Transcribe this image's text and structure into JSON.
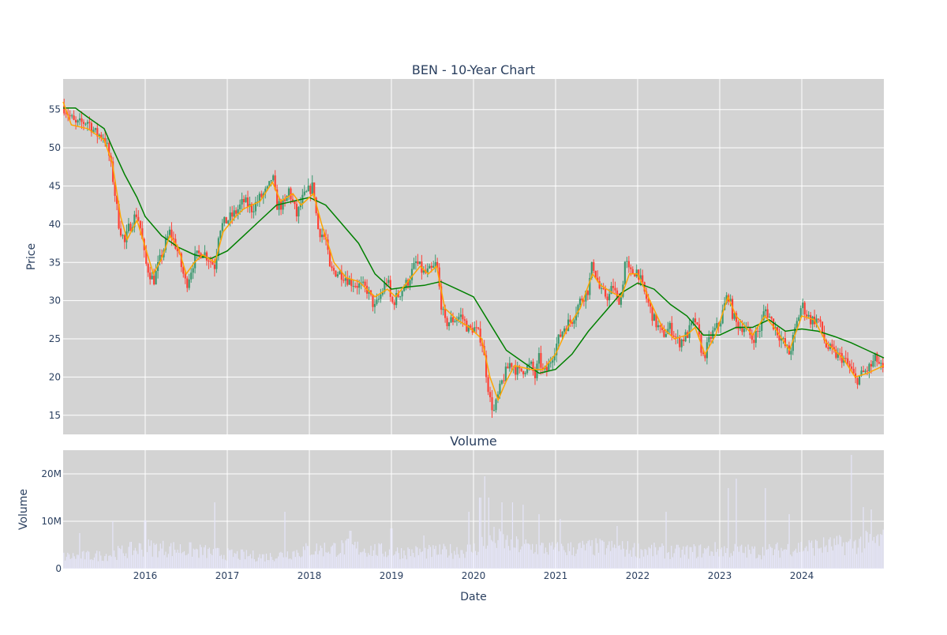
{
  "chart_data": [
    {
      "type": "candlestick",
      "title": "BEN - 10-Year Chart",
      "ylabel": "Price",
      "ylim": [
        12.5,
        59.0
      ],
      "yticks": [
        15,
        20,
        25,
        30,
        35,
        40,
        45,
        50,
        55
      ],
      "xlim": [
        2015.0,
        2025.0
      ],
      "xticks": [
        "2016",
        "2017",
        "2018",
        "2019",
        "2020",
        "2021",
        "2022",
        "2023",
        "2024"
      ],
      "grid": true,
      "legend": "none",
      "colors": {
        "increasing": "#3D9970",
        "decreasing": "#FF4136",
        "ma_short": "#FFA500",
        "ma_long": "#008000",
        "plot_bg": "#D3D3D3"
      },
      "price_path": [
        [
          2015.0,
          55.5
        ],
        [
          2015.15,
          53.0
        ],
        [
          2015.3,
          53.5
        ],
        [
          2015.4,
          51.8
        ],
        [
          2015.5,
          51.5
        ],
        [
          2015.55,
          49.5
        ],
        [
          2015.6,
          46.5
        ],
        [
          2015.68,
          40.0
        ],
        [
          2015.75,
          37.5
        ],
        [
          2015.8,
          39.5
        ],
        [
          2015.9,
          41.5
        ],
        [
          2015.95,
          39.0
        ],
        [
          2016.0,
          35.0
        ],
        [
          2016.1,
          32.5
        ],
        [
          2016.2,
          36.0
        ],
        [
          2016.3,
          39.0
        ],
        [
          2016.38,
          37.0
        ],
        [
          2016.5,
          32.0
        ],
        [
          2016.6,
          35.5
        ],
        [
          2016.7,
          36.5
        ],
        [
          2016.85,
          34.5
        ],
        [
          2016.9,
          39.5
        ],
        [
          2017.0,
          40.5
        ],
        [
          2017.1,
          41.5
        ],
        [
          2017.2,
          43.0
        ],
        [
          2017.3,
          42.0
        ],
        [
          2017.4,
          43.5
        ],
        [
          2017.5,
          44.5
        ],
        [
          2017.55,
          46.5
        ],
        [
          2017.6,
          42.5
        ],
        [
          2017.7,
          42.5
        ],
        [
          2017.75,
          44.5
        ],
        [
          2017.85,
          41.0
        ],
        [
          2017.9,
          43.0
        ],
        [
          2018.0,
          44.5
        ],
        [
          2018.05,
          45.0
        ],
        [
          2018.1,
          39.5
        ],
        [
          2018.2,
          38.0
        ],
        [
          2018.25,
          34.0
        ],
        [
          2018.4,
          33.5
        ],
        [
          2018.5,
          32.5
        ],
        [
          2018.6,
          32.0
        ],
        [
          2018.7,
          31.5
        ],
        [
          2018.8,
          29.0
        ],
        [
          2018.9,
          31.5
        ],
        [
          2018.95,
          33.0
        ],
        [
          2019.0,
          29.5
        ],
        [
          2019.1,
          31.0
        ],
        [
          2019.2,
          32.5
        ],
        [
          2019.3,
          35.0
        ],
        [
          2019.4,
          33.5
        ],
        [
          2019.5,
          34.0
        ],
        [
          2019.55,
          35.0
        ],
        [
          2019.6,
          30.0
        ],
        [
          2019.65,
          27.0
        ],
        [
          2019.75,
          27.5
        ],
        [
          2019.85,
          28.0
        ],
        [
          2019.95,
          26.0
        ],
        [
          2020.0,
          26.5
        ],
        [
          2020.1,
          25.0
        ],
        [
          2020.15,
          21.0
        ],
        [
          2020.2,
          17.0
        ],
        [
          2020.25,
          15.5
        ],
        [
          2020.35,
          19.5
        ],
        [
          2020.45,
          22.0
        ],
        [
          2020.55,
          20.5
        ],
        [
          2020.6,
          21.0
        ],
        [
          2020.7,
          21.5
        ],
        [
          2020.75,
          20.0
        ],
        [
          2020.8,
          22.5
        ],
        [
          2020.85,
          20.5
        ],
        [
          2020.9,
          21.0
        ],
        [
          2021.0,
          24.0
        ],
        [
          2021.1,
          26.5
        ],
        [
          2021.2,
          27.5
        ],
        [
          2021.3,
          30.0
        ],
        [
          2021.4,
          31.5
        ],
        [
          2021.45,
          35.0
        ],
        [
          2021.55,
          31.0
        ],
        [
          2021.65,
          30.5
        ],
        [
          2021.7,
          32.0
        ],
        [
          2021.75,
          30.0
        ],
        [
          2021.8,
          30.5
        ],
        [
          2021.85,
          35.5
        ],
        [
          2021.9,
          33.5
        ],
        [
          2022.0,
          34.0
        ],
        [
          2022.05,
          32.0
        ],
        [
          2022.1,
          30.5
        ],
        [
          2022.2,
          27.5
        ],
        [
          2022.3,
          25.5
        ],
        [
          2022.4,
          26.5
        ],
        [
          2022.5,
          24.5
        ],
        [
          2022.6,
          25.5
        ],
        [
          2022.7,
          27.5
        ],
        [
          2022.8,
          22.5
        ],
        [
          2022.9,
          25.5
        ],
        [
          2023.0,
          27.0
        ],
        [
          2023.1,
          31.0
        ],
        [
          2023.15,
          28.5
        ],
        [
          2023.2,
          27.0
        ],
        [
          2023.3,
          26.5
        ],
        [
          2023.4,
          25.0
        ],
        [
          2023.5,
          26.5
        ],
        [
          2023.55,
          29.0
        ],
        [
          2023.65,
          27.0
        ],
        [
          2023.75,
          25.0
        ],
        [
          2023.85,
          23.0
        ],
        [
          2023.95,
          27.5
        ],
        [
          2024.0,
          29.5
        ],
        [
          2024.1,
          27.5
        ],
        [
          2024.2,
          27.5
        ],
        [
          2024.3,
          24.0
        ],
        [
          2024.4,
          23.0
        ],
        [
          2024.5,
          22.5
        ],
        [
          2024.6,
          21.0
        ],
        [
          2024.65,
          19.5
        ],
        [
          2024.75,
          20.5
        ],
        [
          2024.85,
          21.5
        ],
        [
          2024.9,
          22.5
        ],
        [
          2025.0,
          20.5
        ]
      ],
      "ma_short": [
        [
          2015.0,
          56.0
        ],
        [
          2015.1,
          53.0
        ],
        [
          2015.3,
          52.5
        ],
        [
          2015.5,
          51.0
        ],
        [
          2015.6,
          48.0
        ],
        [
          2015.7,
          41.0
        ],
        [
          2015.78,
          38.0
        ],
        [
          2015.9,
          40.5
        ],
        [
          2016.0,
          37.0
        ],
        [
          2016.1,
          33.5
        ],
        [
          2016.2,
          35.5
        ],
        [
          2016.3,
          38.5
        ],
        [
          2016.4,
          37.0
        ],
        [
          2016.5,
          33.5
        ],
        [
          2016.6,
          35.0
        ],
        [
          2016.7,
          36.0
        ],
        [
          2016.85,
          35.0
        ],
        [
          2016.95,
          39.0
        ],
        [
          2017.1,
          41.0
        ],
        [
          2017.2,
          42.0
        ],
        [
          2017.4,
          43.0
        ],
        [
          2017.55,
          45.5
        ],
        [
          2017.65,
          43.0
        ],
        [
          2017.8,
          44.0
        ],
        [
          2017.9,
          42.5
        ],
        [
          2018.05,
          44.0
        ],
        [
          2018.15,
          40.0
        ],
        [
          2018.3,
          35.0
        ],
        [
          2018.45,
          33.0
        ],
        [
          2018.6,
          32.5
        ],
        [
          2018.8,
          30.5
        ],
        [
          2018.95,
          31.5
        ],
        [
          2019.05,
          30.5
        ],
        [
          2019.2,
          32.5
        ],
        [
          2019.35,
          34.5
        ],
        [
          2019.45,
          33.5
        ],
        [
          2019.55,
          34.5
        ],
        [
          2019.65,
          29.0
        ],
        [
          2019.8,
          27.5
        ],
        [
          2019.95,
          26.5
        ],
        [
          2020.1,
          25.0
        ],
        [
          2020.2,
          20.0
        ],
        [
          2020.3,
          17.0
        ],
        [
          2020.4,
          19.5
        ],
        [
          2020.5,
          21.5
        ],
        [
          2020.7,
          21.0
        ],
        [
          2020.85,
          21.0
        ],
        [
          2021.0,
          23.0
        ],
        [
          2021.15,
          26.5
        ],
        [
          2021.3,
          29.0
        ],
        [
          2021.45,
          33.5
        ],
        [
          2021.55,
          32.0
        ],
        [
          2021.7,
          31.0
        ],
        [
          2021.8,
          30.5
        ],
        [
          2021.9,
          33.5
        ],
        [
          2022.0,
          33.5
        ],
        [
          2022.15,
          30.0
        ],
        [
          2022.3,
          26.5
        ],
        [
          2022.45,
          25.0
        ],
        [
          2022.6,
          25.5
        ],
        [
          2022.7,
          26.5
        ],
        [
          2022.82,
          23.0
        ],
        [
          2022.95,
          25.5
        ],
        [
          2023.1,
          30.5
        ],
        [
          2023.2,
          28.0
        ],
        [
          2023.4,
          25.5
        ],
        [
          2023.55,
          28.0
        ],
        [
          2023.7,
          26.0
        ],
        [
          2023.85,
          23.5
        ],
        [
          2024.0,
          28.0
        ],
        [
          2024.15,
          27.5
        ],
        [
          2024.3,
          24.5
        ],
        [
          2024.5,
          22.5
        ],
        [
          2024.65,
          20.0
        ],
        [
          2024.8,
          20.5
        ],
        [
          2025.0,
          21.5
        ]
      ],
      "ma_long": [
        [
          2015.0,
          55.2
        ],
        [
          2015.15,
          55.2
        ],
        [
          2015.3,
          54.0
        ],
        [
          2015.5,
          52.5
        ],
        [
          2015.6,
          50.0
        ],
        [
          2015.75,
          46.5
        ],
        [
          2015.9,
          43.5
        ],
        [
          2016.0,
          41.0
        ],
        [
          2016.2,
          38.5
        ],
        [
          2016.4,
          37.0
        ],
        [
          2016.6,
          36.0
        ],
        [
          2016.8,
          35.5
        ],
        [
          2017.0,
          36.5
        ],
        [
          2017.2,
          38.5
        ],
        [
          2017.4,
          40.5
        ],
        [
          2017.6,
          42.5
        ],
        [
          2017.8,
          43.0
        ],
        [
          2018.0,
          43.5
        ],
        [
          2018.2,
          42.5
        ],
        [
          2018.4,
          40.0
        ],
        [
          2018.6,
          37.5
        ],
        [
          2018.8,
          33.5
        ],
        [
          2019.0,
          31.5
        ],
        [
          2019.2,
          31.8
        ],
        [
          2019.4,
          32.0
        ],
        [
          2019.6,
          32.5
        ],
        [
          2019.8,
          31.5
        ],
        [
          2020.0,
          30.5
        ],
        [
          2020.2,
          27.0
        ],
        [
          2020.4,
          23.5
        ],
        [
          2020.6,
          22.0
        ],
        [
          2020.8,
          20.5
        ],
        [
          2021.0,
          21.0
        ],
        [
          2021.2,
          23.0
        ],
        [
          2021.4,
          26.0
        ],
        [
          2021.6,
          28.5
        ],
        [
          2021.8,
          31.0
        ],
        [
          2022.0,
          32.3
        ],
        [
          2022.2,
          31.5
        ],
        [
          2022.4,
          29.5
        ],
        [
          2022.6,
          28.0
        ],
        [
          2022.8,
          25.5
        ],
        [
          2023.0,
          25.5
        ],
        [
          2023.2,
          26.5
        ],
        [
          2023.4,
          26.5
        ],
        [
          2023.6,
          27.5
        ],
        [
          2023.8,
          26.0
        ],
        [
          2024.0,
          26.3
        ],
        [
          2024.2,
          26.0
        ],
        [
          2024.4,
          25.3
        ],
        [
          2024.6,
          24.5
        ],
        [
          2024.8,
          23.5
        ],
        [
          2025.0,
          22.5
        ]
      ]
    },
    {
      "type": "bar",
      "title": "Volume",
      "ylabel": "Volume",
      "xlabel": "Date",
      "ylim": [
        0,
        25000000
      ],
      "yticks": [
        0,
        10000000,
        20000000
      ],
      "ytick_labels": [
        "0",
        "10M",
        "20M"
      ],
      "xticks": [
        "2016",
        "2017",
        "2018",
        "2019",
        "2020",
        "2021",
        "2022",
        "2023",
        "2024"
      ],
      "grid": true,
      "colors": {
        "bar": "#E6E6FA",
        "plot_bg": "#D3D3D3"
      },
      "baseline_profile": [
        [
          2015.0,
          2.5
        ],
        [
          2015.5,
          2.8
        ],
        [
          2016.0,
          4.5
        ],
        [
          2016.5,
          4.0
        ],
        [
          2017.0,
          3.0
        ],
        [
          2017.5,
          2.5
        ],
        [
          2018.0,
          4.0
        ],
        [
          2018.5,
          4.5
        ],
        [
          2019.0,
          3.5
        ],
        [
          2019.5,
          3.5
        ],
        [
          2020.0,
          4.0
        ],
        [
          2020.2,
          6.5
        ],
        [
          2020.5,
          5.0
        ],
        [
          2021.0,
          4.0
        ],
        [
          2021.5,
          4.5
        ],
        [
          2022.0,
          4.0
        ],
        [
          2022.5,
          3.5
        ],
        [
          2023.0,
          4.0
        ],
        [
          2023.5,
          3.5
        ],
        [
          2024.0,
          4.5
        ],
        [
          2024.5,
          5.0
        ],
        [
          2025.0,
          6.0
        ]
      ],
      "spikes": [
        [
          2015.2,
          7.5
        ],
        [
          2015.6,
          10.0
        ],
        [
          2016.0,
          10.2
        ],
        [
          2016.85,
          14.0
        ],
        [
          2017.7,
          12.0
        ],
        [
          2018.5,
          8.0
        ],
        [
          2019.0,
          8.5
        ],
        [
          2019.4,
          7.0
        ],
        [
          2019.95,
          12.0
        ],
        [
          2020.08,
          15.0
        ],
        [
          2020.13,
          19.5
        ],
        [
          2020.18,
          15.0
        ],
        [
          2020.35,
          14.0
        ],
        [
          2020.48,
          14.0
        ],
        [
          2020.6,
          13.5
        ],
        [
          2020.8,
          11.5
        ],
        [
          2021.05,
          10.5
        ],
        [
          2021.75,
          9.0
        ],
        [
          2022.35,
          12.0
        ],
        [
          2023.1,
          17.0
        ],
        [
          2023.2,
          19.0
        ],
        [
          2023.55,
          17.0
        ],
        [
          2023.85,
          11.5
        ],
        [
          2024.6,
          24.0
        ],
        [
          2024.75,
          13.0
        ],
        [
          2024.85,
          12.5
        ]
      ]
    }
  ]
}
